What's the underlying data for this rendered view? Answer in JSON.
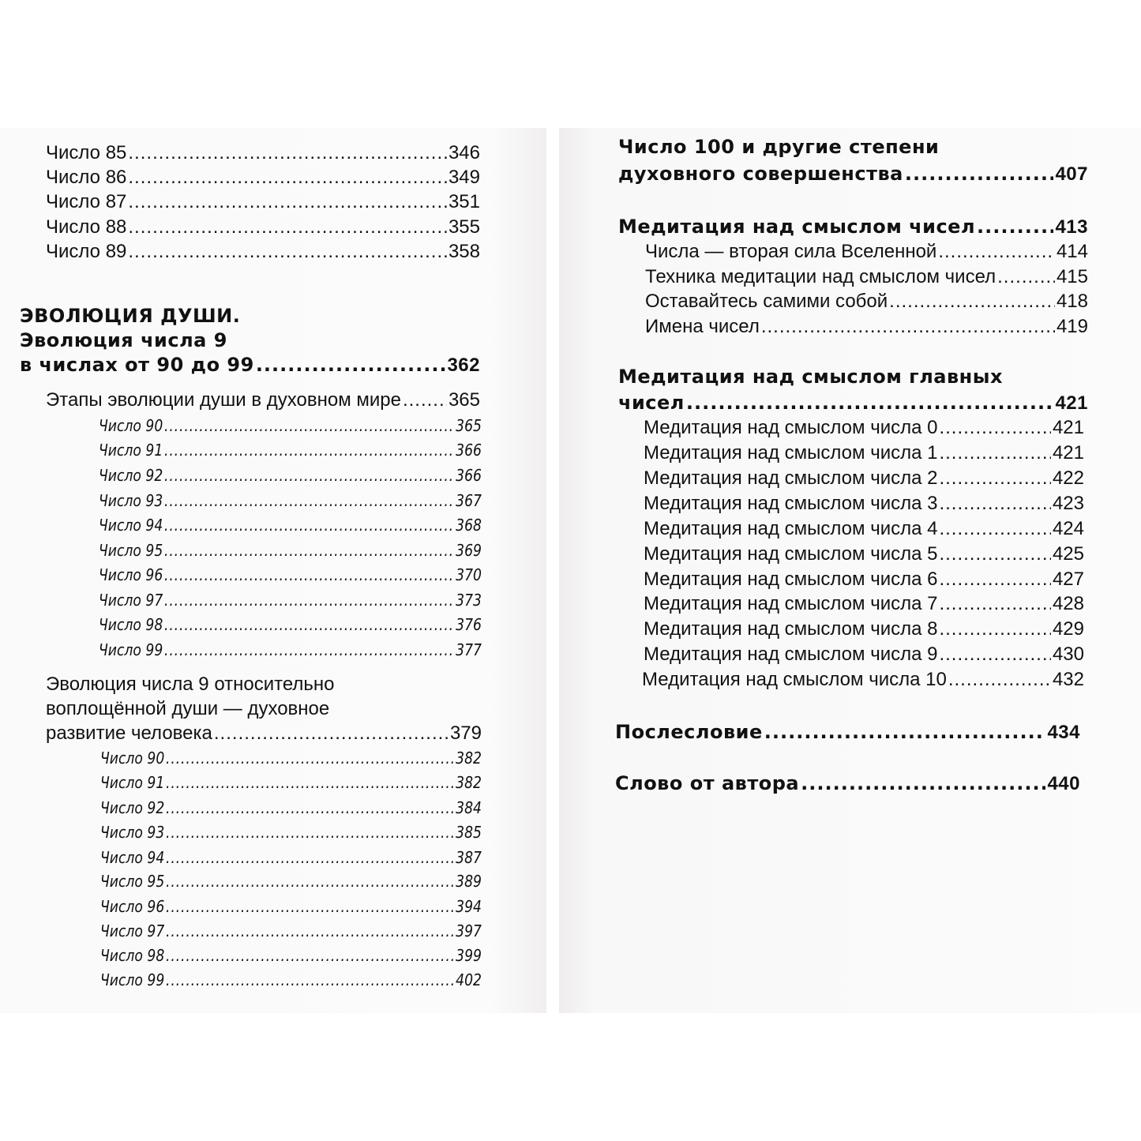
{
  "left_page": {
    "entries": [
      {
        "label": "Число 85",
        "page": "346"
      },
      {
        "label": "Число 86",
        "page": "349"
      },
      {
        "label": "Число 87",
        "page": "351"
      },
      {
        "label": "Число 88",
        "page": "355"
      },
      {
        "label": "Число 89",
        "page": "358"
      },
      {
        "label": "ЭВОЛЮЦИЯ ДУШИ.",
        "page": ""
      },
      {
        "label": "Эволюция числа 9",
        "page": ""
      },
      {
        "label": "в числах от 90 до 99",
        "page": "362"
      },
      {
        "label": "Этапы эволюции души в духовном мире",
        "page": "365"
      },
      {
        "label": "Число 90",
        "page": "365"
      },
      {
        "label": "Число 91",
        "page": "366"
      },
      {
        "label": "Число 92",
        "page": "366"
      },
      {
        "label": "Число 93",
        "page": "367"
      },
      {
        "label": "Число 94",
        "page": "368"
      },
      {
        "label": "Число 95",
        "page": "369"
      },
      {
        "label": "Число 96",
        "page": "370"
      },
      {
        "label": "Число 97",
        "page": "373"
      },
      {
        "label": "Число 98",
        "page": "376"
      },
      {
        "label": "Число 99",
        "page": "377"
      },
      {
        "label": "Эволюция числа 9 относительно",
        "page": ""
      },
      {
        "label": "воплощённой души — духовное",
        "page": ""
      },
      {
        "label": "развитие человека",
        "page": "379"
      },
      {
        "label": "Число 90",
        "page": "382"
      },
      {
        "label": "Число 91",
        "page": "382"
      },
      {
        "label": "Число 92",
        "page": "384"
      },
      {
        "label": "Число 93",
        "page": "385"
      },
      {
        "label": "Число 94",
        "page": "387"
      },
      {
        "label": "Число 95",
        "page": "389"
      },
      {
        "label": "Число 96",
        "page": "394"
      },
      {
        "label": "Число 97",
        "page": "397"
      },
      {
        "label": "Число 98",
        "page": "399"
      },
      {
        "label": "Число 99",
        "page": "402"
      }
    ]
  },
  "right_page": {
    "entries": [
      {
        "label": "Число 100 и другие степени",
        "page": ""
      },
      {
        "label": "духовного совершенства",
        "page": "407"
      },
      {
        "label": "Медитация над смыслом чисел",
        "page": "413"
      },
      {
        "label": "Числа — вторая сила Вселенной",
        "page": "414"
      },
      {
        "label": "Техника медитации над смыслом чисел",
        "page": "415"
      },
      {
        "label": "Оставайтесь самими собой",
        "page": "418"
      },
      {
        "label": "Имена чисел",
        "page": "419"
      },
      {
        "label": "Медитация над смыслом главных",
        "page": ""
      },
      {
        "label": "чисел",
        "page": "421"
      },
      {
        "label": "Медитация над смыслом числа 0",
        "page": "421"
      },
      {
        "label": "Медитация над смыслом числа 1",
        "page": "421"
      },
      {
        "label": "Медитация над смыслом числа 2",
        "page": "422"
      },
      {
        "label": "Медитация над смыслом числа 3",
        "page": "423"
      },
      {
        "label": "Медитация над смыслом числа 4",
        "page": "424"
      },
      {
        "label": "Медитация над смыслом числа 5",
        "page": "425"
      },
      {
        "label": "Медитация над смыслом числа 6",
        "page": "427"
      },
      {
        "label": "Медитация над смыслом числа 7",
        "page": "428"
      },
      {
        "label": "Медитация над смыслом числа 8",
        "page": "429"
      },
      {
        "label": "Медитация над смыслом числа 9",
        "page": "430"
      },
      {
        "label": "Медитация над смыслом числа 10",
        "page": "432"
      },
      {
        "label": "Послесловие",
        "page": "434"
      },
      {
        "label": "Слово от автора",
        "page": "440"
      }
    ]
  }
}
